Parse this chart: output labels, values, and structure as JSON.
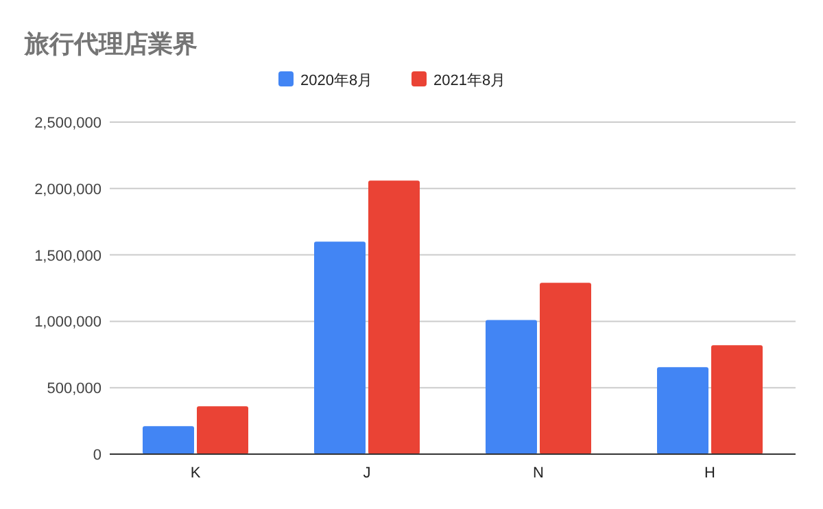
{
  "chart_data": {
    "type": "bar",
    "title": "旅行代理店業界",
    "categories": [
      "K",
      "J",
      "N",
      "H"
    ],
    "series": [
      {
        "name": "2020年8月",
        "color": "#4285f4",
        "values": [
          210000,
          1600000,
          1010000,
          655000
        ]
      },
      {
        "name": "2021年8月",
        "color": "#ea4335",
        "values": [
          360000,
          2060000,
          1290000,
          820000
        ]
      }
    ],
    "ylim": [
      0,
      2500000
    ],
    "yticks": [
      {
        "value": 0,
        "label": "0"
      },
      {
        "value": 500000,
        "label": "500,000"
      },
      {
        "value": 1000000,
        "label": "1,000,000"
      },
      {
        "value": 1500000,
        "label": "1,500,000"
      },
      {
        "value": 2000000,
        "label": "2,000,000"
      },
      {
        "value": 2500000,
        "label": "2,500,000"
      }
    ],
    "grid": "y",
    "legend": "top"
  }
}
